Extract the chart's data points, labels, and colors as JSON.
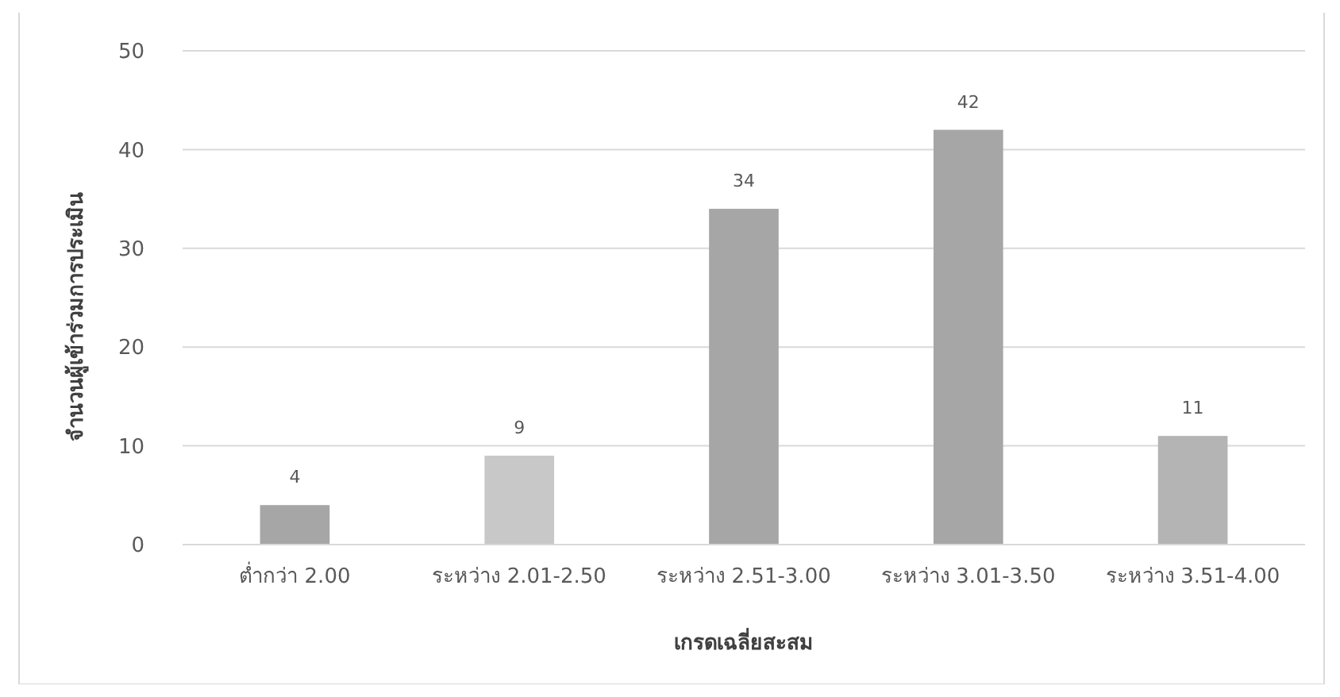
{
  "chart_data": {
    "type": "bar",
    "xlabel": "เกรดเฉลี่ยสะสม",
    "ylabel": "จำนวนผู้เข้าร่วมการประเมิน",
    "categories": [
      "ต่ำกว่า 2.00",
      "ระหว่าง 2.01-2.50",
      "ระหว่าง 2.51-3.00",
      "ระหว่าง 3.01-3.50",
      "ระหว่าง 3.51-4.00"
    ],
    "values": [
      4,
      9,
      34,
      42,
      11
    ],
    "colors": [
      "#a6a6a6",
      "#c8c8c8",
      "#a6a6a6",
      "#a6a6a6",
      "#b4b4b4"
    ],
    "ylim": [
      0,
      50
    ],
    "yticks": [
      0,
      10,
      20,
      30,
      40,
      50
    ],
    "grid": "y",
    "data_labels": true
  }
}
